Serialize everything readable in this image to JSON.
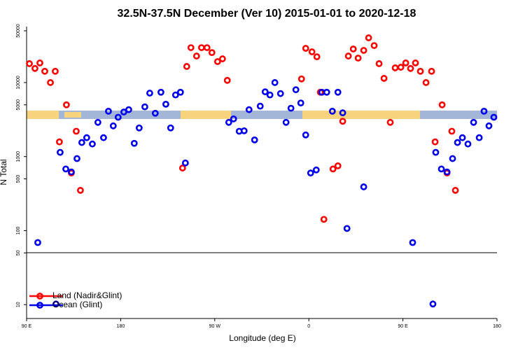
{
  "chart_data": {
    "type": "scatter",
    "title": "32.5N-37.5N December (Ver 10)   2015-01-01 to 2020-12-18",
    "x_label": "Longitude (deg E)",
    "y_label": "N Total",
    "log_y": true,
    "legend": "bottom-left",
    "xlim": [
      90,
      540
    ],
    "ylim": [
      6.5,
      57000
    ],
    "xticks": [
      {
        "value": 90,
        "label": "90 E"
      },
      180,
      {
        "value": 270,
        "label": "90 W"
      },
      {
        "value": 360,
        "label": "0"
      },
      {
        "value": 450,
        "label": "90 E"
      },
      {
        "value": 540,
        "label": "180"
      }
    ],
    "yticks": [
      10,
      50,
      100,
      500,
      1000,
      5000,
      10000,
      50000
    ],
    "series": [
      {
        "name": "Land (Nadir&Glint)",
        "color": "#ff0000",
        "x": [
          92.7,
          98.0,
          102.7,
          107.4,
          112.8,
          117.4,
          121.4,
          128.1,
          132.8,
          137.5,
          141.5,
          239.2,
          243.2,
          247.2,
          252.6,
          257.3,
          262.6,
          267.3,
          272.7,
          277.4,
          282.0,
          353.0,
          357.0,
          363.0,
          367.7,
          371.0,
          374.4,
          383.1,
          387.8,
          392.4,
          397.8,
          402.5,
          407.2,
          412.5,
          417.2,
          422.5,
          427.2,
          431.9,
          437.9,
          442.6,
          448.0,
          452.7,
          457.3,
          462.0,
          466.7,
          472.1,
          477.4,
          480.8,
          487.5,
          492.2,
          496.8,
          500.2
        ],
        "values": [
          18000,
          15500,
          18400,
          14200,
          10000,
          14200,
          1580,
          5000,
          600,
          2200,
          350,
          700,
          16500,
          29600,
          22800,
          29600,
          29600,
          25400,
          19200,
          20900,
          10700,
          11200,
          29000,
          26000,
          22300,
          7400,
          142,
          680,
          750,
          3000,
          22800,
          28400,
          21400,
          27200,
          40200,
          31600,
          18000,
          11400,
          2900,
          15800,
          16100,
          18400,
          15500,
          18400,
          14200,
          10000,
          14200,
          1580,
          5000,
          600,
          2200,
          350
        ]
      },
      {
        "name": "Ocean (Glint)",
        "color": "#0000ee",
        "x": [
          100.7,
          118.1,
          122.1,
          127.5,
          132.8,
          138.2,
          142.8,
          147.5,
          152.9,
          158.2,
          163.6,
          168.3,
          172.9,
          177.6,
          183.0,
          187.7,
          193.0,
          197.7,
          203.1,
          207.8,
          213.1,
          218.5,
          223.2,
          227.8,
          232.5,
          237.2,
          241.9,
          283.4,
          288.0,
          293.4,
          298.1,
          302.8,
          308.1,
          313.5,
          318.2,
          322.8,
          327.5,
          332.9,
          338.2,
          342.9,
          347.6,
          352.3,
          357.0,
          361.7,
          367.1,
          372.4,
          377.1,
          382.5,
          387.8,
          392.4,
          396.5,
          412.5,
          459.3,
          478.7,
          481.4,
          486.8,
          492.2,
          497.5,
          502.2,
          506.9,
          512.2,
          517.6,
          523.0,
          527.6,
          532.3,
          537.0
        ],
        "values": [
          69,
          10.2,
          1140,
          680,
          620,
          940,
          1550,
          1800,
          1480,
          2900,
          1800,
          4100,
          2600,
          3400,
          4000,
          4300,
          1510,
          2440,
          4700,
          7200,
          3850,
          7400,
          5100,
          2440,
          6800,
          7400,
          820,
          2900,
          3230,
          2200,
          2230,
          4300,
          1680,
          4800,
          7500,
          6800,
          10000,
          7100,
          2900,
          4500,
          8000,
          5300,
          1960,
          600,
          660,
          7400,
          7400,
          4100,
          7400,
          3900,
          107,
          390,
          69,
          10.2,
          1140,
          680,
          620,
          940,
          1550,
          1800,
          1480,
          2900,
          1800,
          4100,
          2600,
          3400
        ]
      }
    ]
  }
}
